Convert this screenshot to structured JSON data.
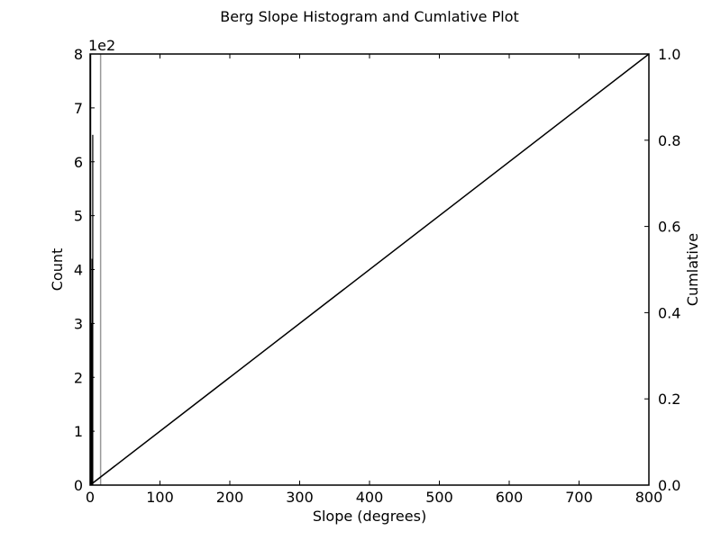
{
  "chart_data": {
    "type": "bar",
    "title": "Berg Slope Histogram and Cumlative Plot",
    "xlabel": "Slope (degrees)",
    "ylabel": "Count",
    "y2label": "Cumlative",
    "y_multiplier_label": "1e2",
    "xlim": [
      0,
      800
    ],
    "ylim": [
      0,
      8
    ],
    "y2lim": [
      0,
      1
    ],
    "x_ticks": [
      0,
      100,
      200,
      300,
      400,
      500,
      600,
      700,
      800
    ],
    "x_tick_labels": [
      "0",
      "100",
      "200",
      "300",
      "400",
      "500",
      "600",
      "700",
      "800"
    ],
    "y_ticks": [
      0,
      1,
      2,
      3,
      4,
      5,
      6,
      7,
      8
    ],
    "y_tick_labels": [
      "0",
      "1",
      "2",
      "3",
      "4",
      "5",
      "6",
      "7",
      "8"
    ],
    "y2_ticks": [
      0,
      0.2,
      0.4,
      0.6,
      0.8,
      1.0
    ],
    "y2_tick_labels": [
      "0.0",
      "0.2",
      "0.4",
      "0.6",
      "0.8",
      "1.0"
    ],
    "grid": false,
    "series": [
      {
        "kind": "histogram",
        "axis": "left",
        "color": "#000000",
        "bars": [
          {
            "x0": 0,
            "x1": 1,
            "count": 8
          },
          {
            "x0": 1,
            "x1": 2,
            "count": 3
          },
          {
            "x0": 2,
            "x1": 3,
            "count": 4.2
          },
          {
            "x0": 3,
            "x1": 4,
            "count": 6.5
          }
        ]
      },
      {
        "kind": "vline",
        "axis": "left",
        "color": "#999999",
        "x": 15
      },
      {
        "kind": "line",
        "axis": "right",
        "color": "#000000",
        "x": [
          0,
          800
        ],
        "y": [
          0,
          1.0
        ]
      }
    ]
  }
}
